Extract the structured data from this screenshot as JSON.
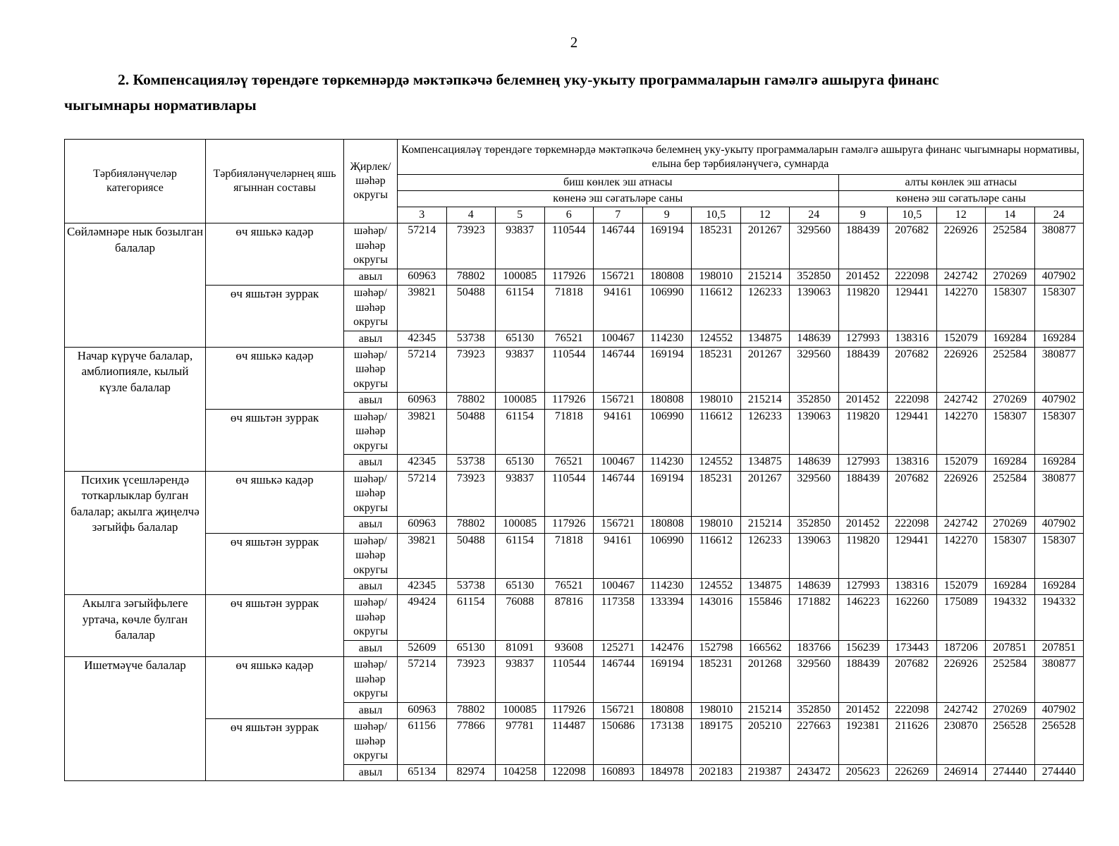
{
  "page": {
    "number": "2",
    "title": "2. Компенсацияләү төрендәге төркемнәрдә мәктәпкәчә белемнең уку-укыту программаларын гамәлгә ашыруга финанс чыгымнары нормативлары"
  },
  "table": {
    "header": {
      "col_category": "Тәрбияләнүчеләр категориясе",
      "col_age": "Тәрбияләнүчеләрнең яшь ягыннан составы",
      "col_location": "Җирлек/ шәһәр округы",
      "main_span": "Компенсацияләү төрендәге төркемнәрдә мәктәпкәчә белемнең уку-укыту программаларын гамәлгә ашыруга финанс чыгымнары нормативы, елына бер тәрбияләнүчегә, сумнарда",
      "five_day": "биш көнлек эш атнасы",
      "six_day": "алты көнлек эш атнасы",
      "hours_label": "көненә эш сәгатьләре саны",
      "five_day_hours": [
        "3",
        "4",
        "5",
        "6",
        "7",
        "9",
        "10,5",
        "12",
        "24"
      ],
      "six_day_hours": [
        "9",
        "10,5",
        "12",
        "14",
        "24"
      ]
    },
    "categories": [
      {
        "label": "Сөйләмнәре нык бозылган балалар",
        "age_groups": [
          {
            "label": "өч яшькә кадәр",
            "rows": [
              {
                "location": "шәһәр/ шәһәр округы",
                "values": [
                  "57214",
                  "73923",
                  "93837",
                  "110544",
                  "146744",
                  "169194",
                  "185231",
                  "201267",
                  "329560",
                  "188439",
                  "207682",
                  "226926",
                  "252584",
                  "380877"
                ]
              },
              {
                "location": "авыл",
                "values": [
                  "60963",
                  "78802",
                  "100085",
                  "117926",
                  "156721",
                  "180808",
                  "198010",
                  "215214",
                  "352850",
                  "201452",
                  "222098",
                  "242742",
                  "270269",
                  "407902"
                ]
              }
            ]
          },
          {
            "label": "өч яшьтән зуррак",
            "rows": [
              {
                "location": "шәһәр/ шәһәр округы",
                "values": [
                  "39821",
                  "50488",
                  "61154",
                  "71818",
                  "94161",
                  "106990",
                  "116612",
                  "126233",
                  "139063",
                  "119820",
                  "129441",
                  "142270",
                  "158307",
                  "158307"
                ]
              },
              {
                "location": "авыл",
                "values": [
                  "42345",
                  "53738",
                  "65130",
                  "76521",
                  "100467",
                  "114230",
                  "124552",
                  "134875",
                  "148639",
                  "127993",
                  "138316",
                  "152079",
                  "169284",
                  "169284"
                ]
              }
            ]
          }
        ]
      },
      {
        "label": "Начар күрүче балалар, амблиопияле, кылый күзле балалар",
        "age_groups": [
          {
            "label": "өч яшькә кадәр",
            "rows": [
              {
                "location": "шәһәр/ шәһәр округы",
                "values": [
                  "57214",
                  "73923",
                  "93837",
                  "110544",
                  "146744",
                  "169194",
                  "185231",
                  "201267",
                  "329560",
                  "188439",
                  "207682",
                  "226926",
                  "252584",
                  "380877"
                ]
              },
              {
                "location": "авыл",
                "values": [
                  "60963",
                  "78802",
                  "100085",
                  "117926",
                  "156721",
                  "180808",
                  "198010",
                  "215214",
                  "352850",
                  "201452",
                  "222098",
                  "242742",
                  "270269",
                  "407902"
                ]
              }
            ]
          },
          {
            "label": "өч яшьтән зуррак",
            "rows": [
              {
                "location": "шәһәр/ шәһәр округы",
                "values": [
                  "39821",
                  "50488",
                  "61154",
                  "71818",
                  "94161",
                  "106990",
                  "116612",
                  "126233",
                  "139063",
                  "119820",
                  "129441",
                  "142270",
                  "158307",
                  "158307"
                ]
              },
              {
                "location": "авыл",
                "values": [
                  "42345",
                  "53738",
                  "65130",
                  "76521",
                  "100467",
                  "114230",
                  "124552",
                  "134875",
                  "148639",
                  "127993",
                  "138316",
                  "152079",
                  "169284",
                  "169284"
                ]
              }
            ]
          }
        ]
      },
      {
        "label": "Психик үсешләрендә тоткарлыклар булган балалар; акылга җиңелчә зәгыйфь балалар",
        "age_groups": [
          {
            "label": "өч яшькә кадәр",
            "rows": [
              {
                "location": "шәһәр/ шәһәр округы",
                "values": [
                  "57214",
                  "73923",
                  "93837",
                  "110544",
                  "146744",
                  "169194",
                  "185231",
                  "201267",
                  "329560",
                  "188439",
                  "207682",
                  "226926",
                  "252584",
                  "380877"
                ]
              },
              {
                "location": "авыл",
                "values": [
                  "60963",
                  "78802",
                  "100085",
                  "117926",
                  "156721",
                  "180808",
                  "198010",
                  "215214",
                  "352850",
                  "201452",
                  "222098",
                  "242742",
                  "270269",
                  "407902"
                ]
              }
            ]
          },
          {
            "label": "өч яшьтән зуррак",
            "rows": [
              {
                "location": "шәһәр/ шәһәр округы",
                "values": [
                  "39821",
                  "50488",
                  "61154",
                  "71818",
                  "94161",
                  "106990",
                  "116612",
                  "126233",
                  "139063",
                  "119820",
                  "129441",
                  "142270",
                  "158307",
                  "158307"
                ]
              },
              {
                "location": "авыл",
                "values": [
                  "42345",
                  "53738",
                  "65130",
                  "76521",
                  "100467",
                  "114230",
                  "124552",
                  "134875",
                  "148639",
                  "127993",
                  "138316",
                  "152079",
                  "169284",
                  "169284"
                ]
              }
            ]
          }
        ]
      },
      {
        "label": "Акылга зәгыйфьлеге уртача, көчле булган балалар",
        "age_groups": [
          {
            "label": "өч яшьтән зуррак",
            "rows": [
              {
                "location": "шәһәр/ шәһәр округы",
                "values": [
                  "49424",
                  "61154",
                  "76088",
                  "87816",
                  "117358",
                  "133394",
                  "143016",
                  "155846",
                  "171882",
                  "146223",
                  "162260",
                  "175089",
                  "194332",
                  "194332"
                ]
              },
              {
                "location": "авыл",
                "values": [
                  "52609",
                  "65130",
                  "81091",
                  "93608",
                  "125271",
                  "142476",
                  "152798",
                  "166562",
                  "183766",
                  "156239",
                  "173443",
                  "187206",
                  "207851",
                  "207851"
                ]
              }
            ]
          }
        ]
      },
      {
        "label": "Ишетмәүче балалар",
        "age_groups": [
          {
            "label": "өч яшькә кадәр",
            "rows": [
              {
                "location": "шәһәр/ шәһәр округы",
                "values": [
                  "57214",
                  "73923",
                  "93837",
                  "110544",
                  "146744",
                  "169194",
                  "185231",
                  "201268",
                  "329560",
                  "188439",
                  "207682",
                  "226926",
                  "252584",
                  "380877"
                ]
              },
              {
                "location": "авыл",
                "values": [
                  "60963",
                  "78802",
                  "100085",
                  "117926",
                  "156721",
                  "180808",
                  "198010",
                  "215214",
                  "352850",
                  "201452",
                  "222098",
                  "242742",
                  "270269",
                  "407902"
                ]
              }
            ]
          },
          {
            "label": "өч яшьтән зуррак",
            "rows": [
              {
                "location": "шәһәр/ шәһәр округы",
                "values": [
                  "61156",
                  "77866",
                  "97781",
                  "114487",
                  "150686",
                  "173138",
                  "189175",
                  "205210",
                  "227663",
                  "192381",
                  "211626",
                  "230870",
                  "256528",
                  "256528"
                ]
              },
              {
                "location": "авыл",
                "values": [
                  "65134",
                  "82974",
                  "104258",
                  "122098",
                  "160893",
                  "184978",
                  "202183",
                  "219387",
                  "243472",
                  "205623",
                  "226269",
                  "246914",
                  "274440",
                  "274440"
                ]
              }
            ]
          }
        ]
      }
    ]
  }
}
